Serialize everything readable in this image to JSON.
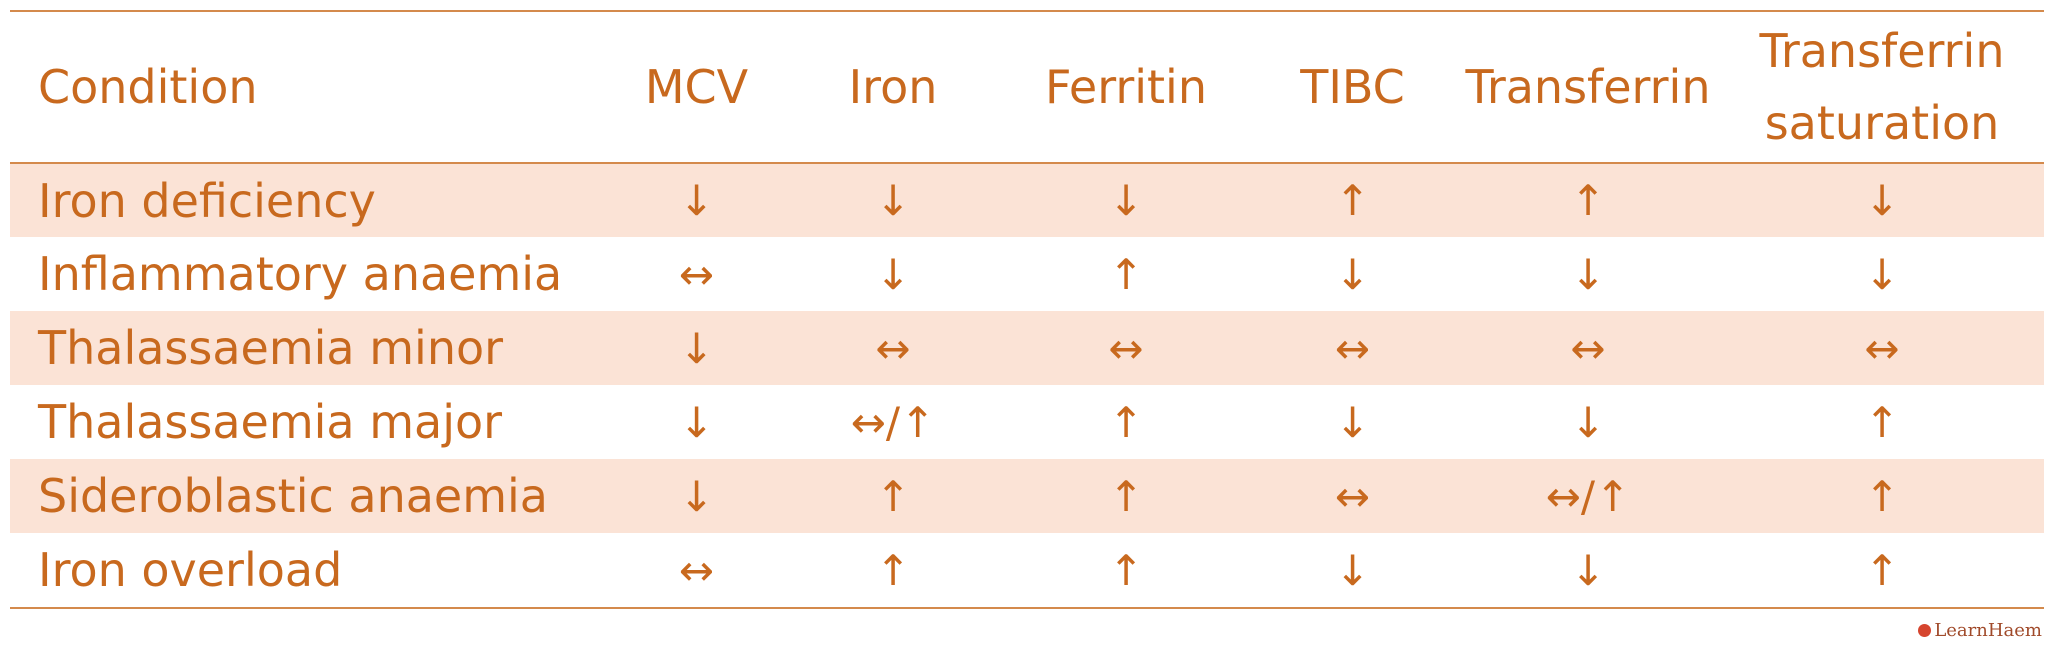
{
  "table": {
    "headers": [
      "Condition",
      "MCV",
      "Iron",
      "Ferritin",
      "TIBC",
      "Transferrin",
      "Transferrin saturation"
    ],
    "rows": [
      [
        "Iron deficiency",
        "↓",
        "↓",
        "↓",
        "↑",
        "↑",
        "↓"
      ],
      [
        "Inflammatory anaemia",
        "↔",
        "↓",
        "↑",
        "↓",
        "↓",
        "↓"
      ],
      [
        "Thalassaemia minor",
        "↓",
        "↔",
        "↔",
        "↔",
        "↔",
        "↔"
      ],
      [
        "Thalassaemia major",
        "↓",
        "↔/↑",
        "↑",
        "↓",
        "↓",
        "↑"
      ],
      [
        "Sideroblastic anaemia",
        "↓",
        "↑",
        "↑",
        "↔",
        "↔/↑",
        "↑"
      ],
      [
        "Iron overload",
        "↔",
        "↑",
        "↑",
        "↓",
        "↓",
        "↑"
      ]
    ]
  },
  "colors": {
    "text": "#c8691e",
    "rule": "#d48a4c",
    "band": "#fbe3d6"
  },
  "watermark": {
    "label": "LearnHaem"
  }
}
